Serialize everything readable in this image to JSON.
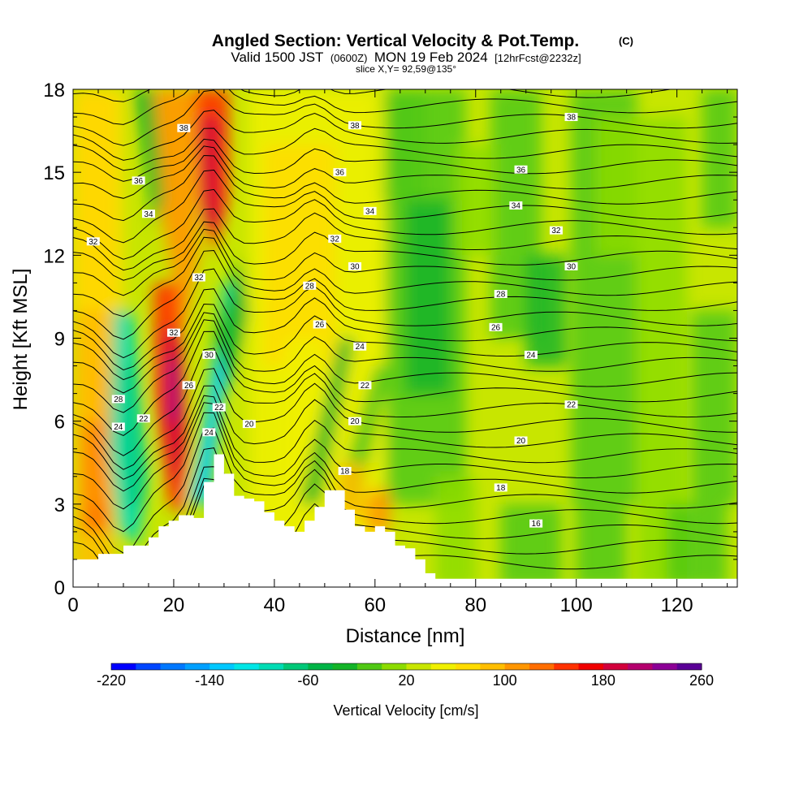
{
  "title": {
    "main": "Angled Section: Vertical Velocity & Pot.Temp.",
    "copyright": "(C)",
    "valid_prefix": "Valid 1500 JST",
    "utc": "(0600Z)",
    "valid_date": "MON 19 Feb 2024",
    "forecast": "[12hrFcst@2232z]",
    "slice": "slice X,Y= 92,59@135°"
  },
  "chart_data": {
    "type": "heatmap",
    "xlabel": "Distance [nm]",
    "ylabel": "Height [Kft MSL]",
    "xlim": [
      0,
      132
    ],
    "ylim": [
      0,
      18
    ],
    "x_ticks": [
      0,
      20,
      40,
      60,
      80,
      100,
      120
    ],
    "y_ticks": [
      0,
      3,
      6,
      9,
      12,
      15,
      18
    ],
    "colorbar": {
      "label": "Vertical Velocity [cm/s]",
      "range": [
        -220,
        260
      ],
      "step": 20,
      "tick_values": [
        -220,
        -140,
        -60,
        20,
        100,
        180,
        260
      ],
      "colors": [
        "#0000ff",
        "#0046ff",
        "#0078ff",
        "#00a0ff",
        "#00c8ff",
        "#00e6e6",
        "#00dcb4",
        "#00c878",
        "#00b446",
        "#14b428",
        "#50c814",
        "#8cdc00",
        "#c8e600",
        "#f0f000",
        "#ffdc00",
        "#ffbe00",
        "#ff9600",
        "#ff6e00",
        "#ff3200",
        "#f00000",
        "#d2003c",
        "#b4006e",
        "#8c0096",
        "#5a0096"
      ]
    },
    "potential_temperature_contours": {
      "units_note": "isentropes labeled in °C-equivalent values as printed",
      "labels": [
        {
          "value": "38",
          "x": 22,
          "y": 16.6
        },
        {
          "value": "38",
          "x": 56,
          "y": 16.7
        },
        {
          "value": "38",
          "x": 99,
          "y": 17.0
        },
        {
          "value": "36",
          "x": 13,
          "y": 14.7
        },
        {
          "value": "36",
          "x": 53,
          "y": 15.0
        },
        {
          "value": "36",
          "x": 89,
          "y": 15.1
        },
        {
          "value": "34",
          "x": 15,
          "y": 13.5
        },
        {
          "value": "34",
          "x": 59,
          "y": 13.6
        },
        {
          "value": "34",
          "x": 88,
          "y": 13.8
        },
        {
          "value": "32",
          "x": 4,
          "y": 12.5
        },
        {
          "value": "32",
          "x": 52,
          "y": 12.6
        },
        {
          "value": "32",
          "x": 96,
          "y": 12.9
        },
        {
          "value": "32",
          "x": 25,
          "y": 11.2
        },
        {
          "value": "32",
          "x": 20,
          "y": 9.2
        },
        {
          "value": "30",
          "x": 56,
          "y": 11.6
        },
        {
          "value": "30",
          "x": 99,
          "y": 11.6
        },
        {
          "value": "30",
          "x": 27,
          "y": 8.4
        },
        {
          "value": "28",
          "x": 47,
          "y": 10.9
        },
        {
          "value": "28",
          "x": 85,
          "y": 10.6
        },
        {
          "value": "28",
          "x": 9,
          "y": 6.8
        },
        {
          "value": "26",
          "x": 49,
          "y": 9.5
        },
        {
          "value": "26",
          "x": 84,
          "y": 9.4
        },
        {
          "value": "26",
          "x": 23,
          "y": 7.3
        },
        {
          "value": "24",
          "x": 57,
          "y": 8.7
        },
        {
          "value": "24",
          "x": 91,
          "y": 8.4
        },
        {
          "value": "24",
          "x": 9,
          "y": 5.8
        },
        {
          "value": "24",
          "x": 27,
          "y": 5.6
        },
        {
          "value": "22",
          "x": 58,
          "y": 7.3
        },
        {
          "value": "22",
          "x": 99,
          "y": 6.6
        },
        {
          "value": "22",
          "x": 14,
          "y": 6.1
        },
        {
          "value": "22",
          "x": 29,
          "y": 6.5
        },
        {
          "value": "20",
          "x": 35,
          "y": 5.9
        },
        {
          "value": "20",
          "x": 56,
          "y": 6.0
        },
        {
          "value": "20",
          "x": 89,
          "y": 5.3
        },
        {
          "value": "18",
          "x": 54,
          "y": 4.2
        },
        {
          "value": "18",
          "x": 85,
          "y": 3.6
        },
        {
          "value": "16",
          "x": 92,
          "y": 2.3
        }
      ]
    },
    "terrain_profile": {
      "x": [
        0,
        5,
        10,
        13,
        15,
        17,
        19,
        21,
        23,
        24,
        26,
        28,
        30,
        32,
        34,
        36,
        38,
        40,
        42,
        44,
        46,
        48,
        50,
        52,
        54,
        56,
        58,
        60,
        62,
        64,
        66,
        68,
        70,
        72,
        80,
        100,
        120,
        132
      ],
      "y": [
        1.0,
        1.2,
        1.5,
        1.5,
        1.8,
        2.2,
        2.4,
        2.6,
        2.6,
        2.5,
        3.8,
        4.8,
        4.1,
        3.3,
        3.2,
        3.1,
        2.7,
        2.4,
        2.2,
        2.0,
        2.4,
        2.9,
        3.5,
        3.5,
        2.8,
        2.2,
        2.0,
        2.2,
        2.0,
        1.5,
        1.4,
        1.0,
        0.5,
        0.3,
        0.3,
        0.3,
        0.3,
        0.3
      ]
    }
  }
}
